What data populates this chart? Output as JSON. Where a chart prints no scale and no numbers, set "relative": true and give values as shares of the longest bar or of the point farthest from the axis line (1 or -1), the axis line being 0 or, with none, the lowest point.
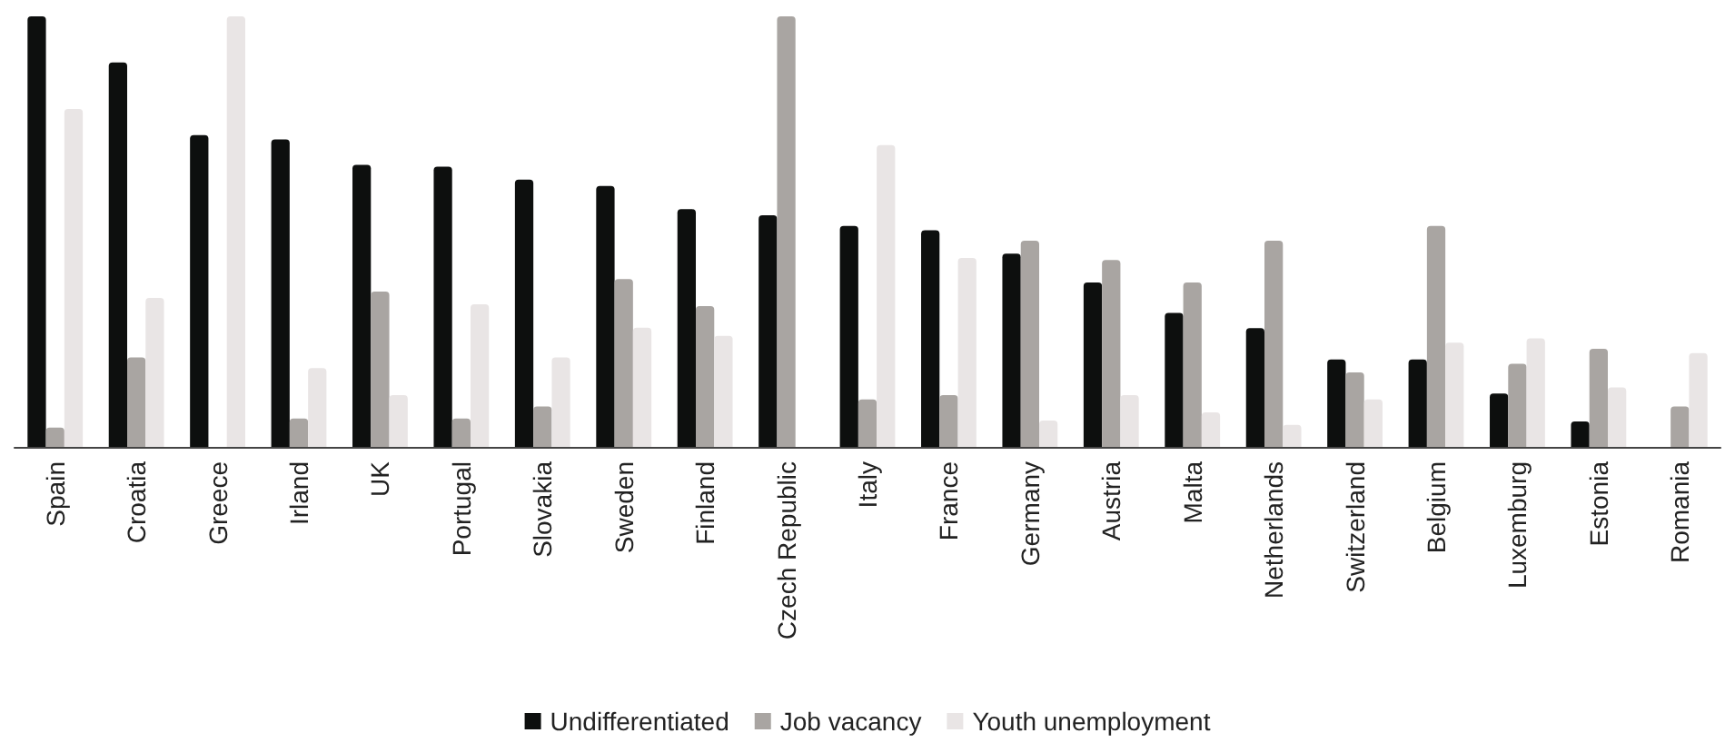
{
  "chart_data": {
    "type": "bar",
    "relative": true,
    "legend": "bottom",
    "grid": false,
    "categories": [
      "Spain",
      "Croatia",
      "Greece",
      "Irland",
      "UK",
      "Portugal",
      "Slovakia",
      "Sweden",
      "Finland",
      "Czech Republic",
      "Italy",
      "France",
      "Germany",
      "Austria",
      "Malta",
      "Netherlands",
      "Switzerland",
      "Belgium",
      "Luxemburg",
      "Estonia",
      "Romania"
    ],
    "series": [
      {
        "name": "Undifferentiated",
        "color": "#0d0f0e",
        "values": [
          1.0,
          0.893,
          0.724,
          0.714,
          0.655,
          0.651,
          0.621,
          0.606,
          0.552,
          0.538,
          0.513,
          0.503,
          0.449,
          0.382,
          0.311,
          0.276,
          0.203,
          0.203,
          0.124,
          0.059,
          0
        ]
      },
      {
        "name": "Job vacancy",
        "color": "#a9a5a2",
        "values": [
          0.045,
          0.208,
          0,
          0.066,
          0.361,
          0.066,
          0.094,
          0.39,
          0.327,
          1.0,
          0.11,
          0.12,
          0.479,
          0.434,
          0.382,
          0.479,
          0.173,
          0.513,
          0.193,
          0.228,
          0.094
        ]
      },
      {
        "name": "Youth unemployment",
        "color": "#e9e5e5",
        "values": [
          0.785,
          0.346,
          1.0,
          0.183,
          0.12,
          0.331,
          0.208,
          0.277,
          0.258,
          0,
          0.701,
          0.439,
          0.061,
          0.12,
          0.08,
          0.051,
          0.11,
          0.242,
          0.252,
          0.138,
          0.218
        ]
      }
    ]
  }
}
